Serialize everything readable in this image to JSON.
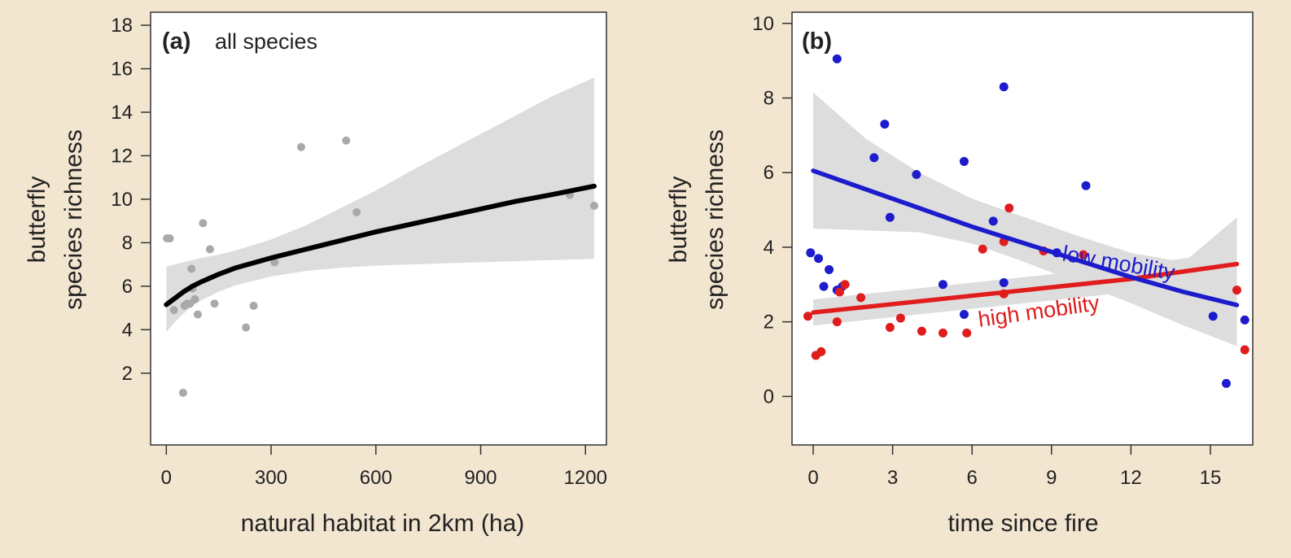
{
  "colors": {
    "background": "#f3e6d1",
    "plot_background": "#ffffff",
    "band": "#dddddd",
    "point_a": "#a9a9a9",
    "fit_a": "#000000",
    "low_mobility": "#1c1ccc",
    "high_mobility": "#e01c1c"
  },
  "chart_data": [
    {
      "type": "scatter",
      "panel_label": "(a)",
      "title": "all species",
      "xlabel": "natural habitat in 2km (ha)",
      "ylabel_lines": [
        "butterfly",
        "species richness"
      ],
      "xlim": [
        -45,
        1260
      ],
      "ylim": [
        -1.3,
        18.6
      ],
      "xticks": [
        0,
        300,
        600,
        900,
        1200
      ],
      "yticks": [
        2,
        4,
        6,
        8,
        10,
        12,
        14,
        16,
        18
      ],
      "grid": false,
      "points": [
        [
          2,
          8.2
        ],
        [
          10,
          8.2
        ],
        [
          22,
          4.9
        ],
        [
          48,
          1.1
        ],
        [
          52,
          5.1
        ],
        [
          60,
          5.2
        ],
        [
          68,
          5.2
        ],
        [
          72,
          6.8
        ],
        [
          75,
          5.9
        ],
        [
          82,
          5.4
        ],
        [
          90,
          4.7
        ],
        [
          105,
          8.9
        ],
        [
          125,
          7.7
        ],
        [
          138,
          5.2
        ],
        [
          228,
          4.1
        ],
        [
          250,
          5.1
        ],
        [
          310,
          7.1
        ],
        [
          386,
          12.4
        ],
        [
          515,
          12.7
        ],
        [
          545,
          9.4
        ],
        [
          1155,
          10.2
        ],
        [
          1225,
          9.7
        ]
      ],
      "fit": {
        "x": [
          0,
          25,
          50,
          75,
          100,
          150,
          200,
          300,
          400,
          500,
          600,
          700,
          800,
          900,
          1000,
          1100,
          1225
        ],
        "y": [
          5.15,
          5.45,
          5.75,
          6.0,
          6.2,
          6.55,
          6.85,
          7.3,
          7.7,
          8.1,
          8.5,
          8.85,
          9.2,
          9.55,
          9.9,
          10.2,
          10.6
        ],
        "lower": [
          3.9,
          4.35,
          4.75,
          5.1,
          5.35,
          5.75,
          6.05,
          6.45,
          6.7,
          6.85,
          6.95,
          7.0,
          7.05,
          7.1,
          7.15,
          7.2,
          7.25
        ],
        "upper": [
          6.9,
          7.0,
          7.1,
          7.2,
          7.3,
          7.45,
          7.65,
          8.15,
          8.8,
          9.6,
          10.4,
          11.3,
          12.15,
          13.0,
          13.85,
          14.7,
          15.6
        ]
      }
    },
    {
      "type": "scatter",
      "panel_label": "(b)",
      "xlabel": "time since fire",
      "ylabel_lines": [
        "butterfly",
        "species richness"
      ],
      "xlim": [
        -0.8,
        16.6
      ],
      "ylim": [
        -1.3,
        10.3
      ],
      "xticks": [
        0,
        3,
        6,
        9,
        12,
        15
      ],
      "yticks": [
        0,
        2,
        4,
        6,
        8,
        10
      ],
      "grid": false,
      "series": [
        {
          "name": "low mobility",
          "color": "#1c1ccc",
          "points": [
            [
              -0.1,
              3.85
            ],
            [
              0.2,
              3.7
            ],
            [
              0.4,
              2.95
            ],
            [
              0.6,
              3.4
            ],
            [
              0.9,
              9.05
            ],
            [
              0.9,
              2.85
            ],
            [
              1.1,
              2.95
            ],
            [
              2.3,
              6.4
            ],
            [
              2.7,
              7.3
            ],
            [
              2.9,
              4.8
            ],
            [
              3.9,
              5.95
            ],
            [
              4.9,
              3.0
            ],
            [
              5.7,
              6.3
            ],
            [
              5.7,
              2.2
            ],
            [
              6.8,
              4.7
            ],
            [
              7.2,
              8.3
            ],
            [
              7.2,
              3.05
            ],
            [
              9.2,
              3.85
            ],
            [
              10.3,
              5.65
            ],
            [
              15.1,
              2.15
            ],
            [
              15.6,
              0.35
            ],
            [
              16.3,
              2.05
            ]
          ],
          "fit": {
            "x": [
              0,
              2,
              4,
              6,
              8,
              10,
              12,
              14,
              16
            ],
            "y": [
              6.05,
              5.55,
              5.05,
              4.55,
              4.1,
              3.65,
              3.2,
              2.8,
              2.45
            ],
            "lower": [
              4.5,
              4.45,
              4.4,
              4.1,
              3.6,
              3.05,
              2.5,
              1.9,
              1.35
            ],
            "upper": [
              8.15,
              6.9,
              6.0,
              5.3,
              4.8,
              4.3,
              3.85,
              3.6,
              4.8
            ]
          },
          "label": "low mobility"
        },
        {
          "name": "high mobility",
          "color": "#e01c1c",
          "points": [
            [
              -0.2,
              2.15
            ],
            [
              0.1,
              1.1
            ],
            [
              0.3,
              1.2
            ],
            [
              0.9,
              2.0
            ],
            [
              1.0,
              2.8
            ],
            [
              1.2,
              3.0
            ],
            [
              1.8,
              2.65
            ],
            [
              2.9,
              1.85
            ],
            [
              3.3,
              2.1
            ],
            [
              4.1,
              1.75
            ],
            [
              4.9,
              1.7
            ],
            [
              5.8,
              1.7
            ],
            [
              6.4,
              3.95
            ],
            [
              7.2,
              4.15
            ],
            [
              7.4,
              5.05
            ],
            [
              7.2,
              2.75
            ],
            [
              8.7,
              3.9
            ],
            [
              10.2,
              3.8
            ],
            [
              16.0,
              2.85
            ],
            [
              16.3,
              1.25
            ]
          ],
          "fit": {
            "x": [
              0,
              2,
              4,
              6,
              8,
              10,
              12,
              14,
              16
            ],
            "y": [
              2.25,
              2.4,
              2.55,
              2.7,
              2.85,
              3.0,
              3.15,
              3.35,
              3.55
            ]
          },
          "label": "high mobility"
        }
      ]
    }
  ]
}
